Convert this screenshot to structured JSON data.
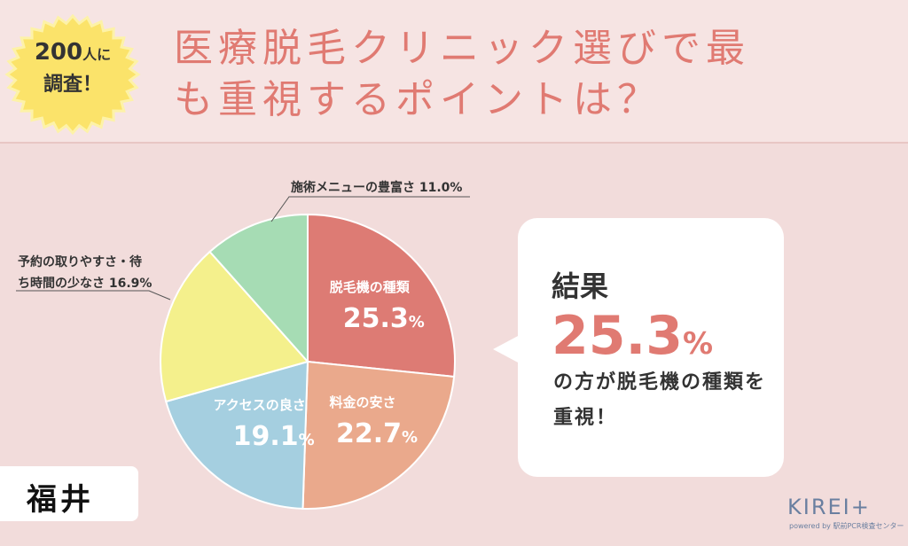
{
  "header": {
    "badge_line1_num": "200",
    "badge_line1_suffix": "人に",
    "badge_line2": "調査！",
    "title_line1": "医療脱毛クリニック選びで最",
    "title_line2": "も重視するポイントは？"
  },
  "chart_data": {
    "type": "pie",
    "unit": "%",
    "slices": [
      {
        "label": "脱毛機の種類",
        "value": 25.3,
        "value_main": "25.3",
        "color": "#dd7b74"
      },
      {
        "label": "料金の安さ",
        "value": 22.7,
        "value_main": "22.7",
        "color": "#eaa98c"
      },
      {
        "label": "アクセスの良さ",
        "value": 19.1,
        "value_main": "19.1",
        "color": "#a5cfe0"
      },
      {
        "label": "予約の取りやすさ・待ち時間の少なさ",
        "value": 16.9,
        "external_lines": [
          "予約の取りやすさ・待",
          "ち時間の少なさ 16.9%"
        ],
        "color": "#f4f08c"
      },
      {
        "label": "施術メニューの豊富さ",
        "value": 11.0,
        "external_lines": [
          "施術メニューの豊富さ 11.0%"
        ],
        "color": "#a6dcb4"
      }
    ]
  },
  "result": {
    "label": "結果",
    "value_main": "25.3",
    "value_pct": "%",
    "text": "の方が脱毛機の種類を重視！"
  },
  "region": "福井",
  "logo": {
    "main": "KIREI+",
    "sub": "powered by 駅前PCR検査センター"
  }
}
